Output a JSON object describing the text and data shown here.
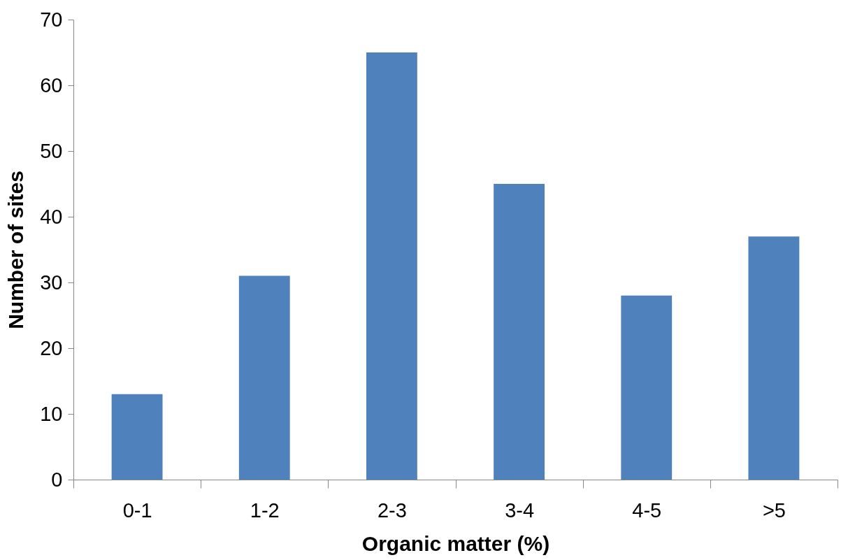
{
  "chart_data": {
    "type": "bar",
    "xlabel": "Organic matter (%)",
    "ylabel": "Number of sites",
    "categories": [
      "0-1",
      "1-2",
      "2-3",
      "3-4",
      "4-5",
      ">5"
    ],
    "values": [
      13,
      31,
      65,
      45,
      28,
      37
    ],
    "color": "#4f81bd",
    "ylim": [
      0,
      70
    ],
    "yticks": [
      0,
      10,
      20,
      30,
      40,
      50,
      60,
      70
    ],
    "grid": false
  }
}
